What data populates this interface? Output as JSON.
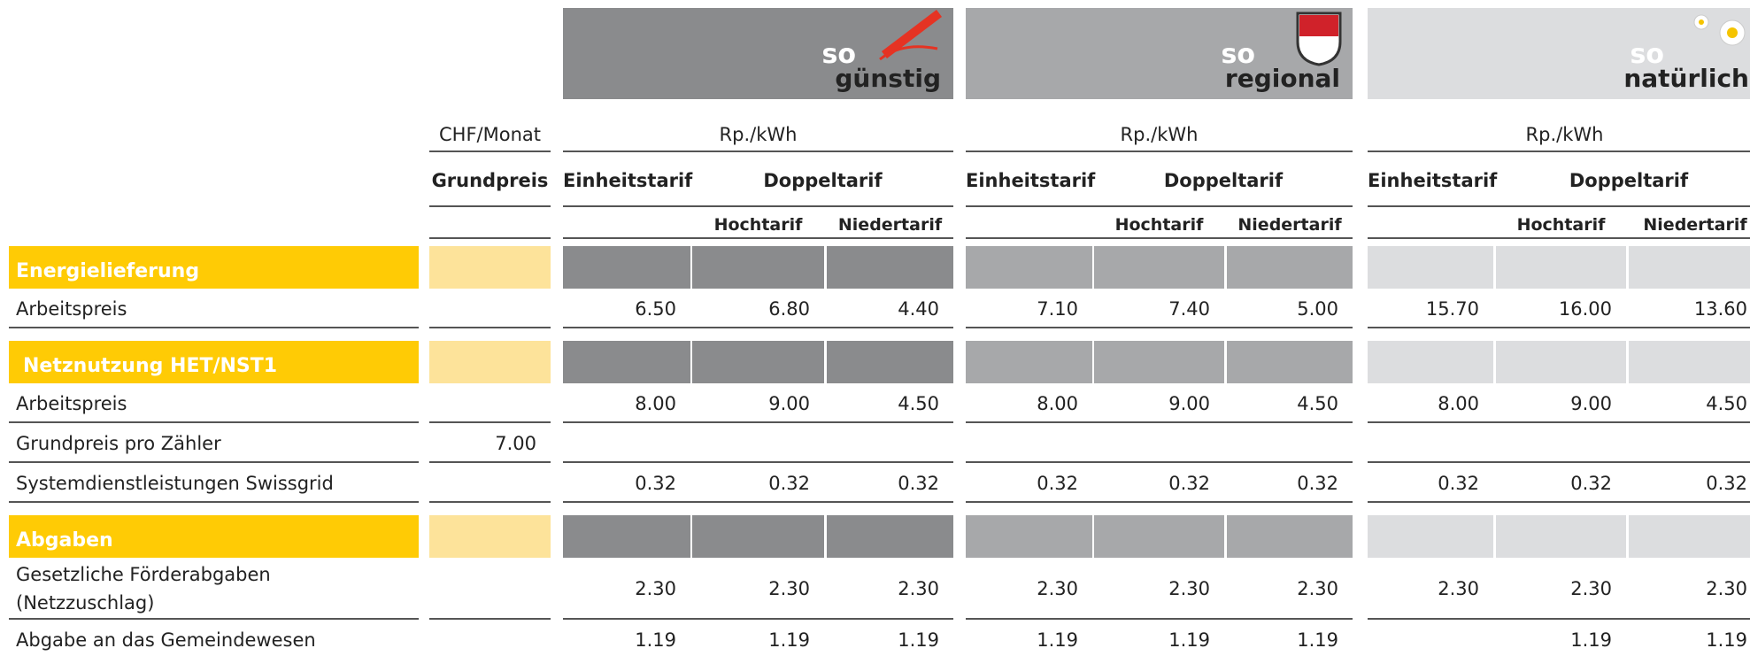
{
  "groups": [
    {
      "brand": "so",
      "name": "günstig"
    },
    {
      "brand": "so",
      "name": "regional"
    },
    {
      "brand": "so",
      "name": "natürlich"
    }
  ],
  "units": {
    "grundpreis": "CHF/Monat",
    "groups": [
      "Rp./kWh",
      "Rp./kWh",
      "Rp./kWh"
    ]
  },
  "columns": {
    "grundpreis": "Grundpreis",
    "groups": [
      {
        "single": "Einheitstarif",
        "double": "Doppeltarif",
        "high": "Hochtarif",
        "low": "Niedertarif"
      },
      {
        "single": "Einheitstarif",
        "double": "Doppeltarif",
        "high": "Hochtarif",
        "low": "Niedertarif"
      },
      {
        "single": "Einheitstarif",
        "double": "Doppeltarif",
        "high": "Hochtarif",
        "low": "Niedertarif"
      }
    ]
  },
  "sections": [
    {
      "title": "Energielieferung",
      "rows": [
        {
          "label": "Arbeitspreis",
          "values": [
            [
              "6.50",
              "6.80",
              "4.40"
            ],
            [
              "7.10",
              "7.40",
              "5.00"
            ],
            [
              "15.70",
              "16.00",
              "13.60"
            ]
          ]
        }
      ]
    },
    {
      "title": "Netznutzung HET/NST1",
      "rows": [
        {
          "label": "Arbeitspreis",
          "values": [
            [
              "8.00",
              "9.00",
              "4.50"
            ],
            [
              "8.00",
              "9.00",
              "4.50"
            ],
            [
              "8.00",
              "9.00",
              "4.50"
            ]
          ]
        },
        {
          "label": "Grundpreis pro Zähler",
          "grundpreis": "7.00"
        },
        {
          "label": "Systemdienstleistungen Swissgrid",
          "values": [
            [
              "0.32",
              "0.32",
              "0.32"
            ],
            [
              "0.32",
              "0.32",
              "0.32"
            ],
            [
              "0.32",
              "0.32",
              "0.32"
            ]
          ]
        }
      ]
    },
    {
      "title": "Abgaben",
      "rows": [
        {
          "label": [
            "Gesetzliche Förderabgaben",
            "(Netzzuschlag)"
          ],
          "values": [
            [
              "2.30",
              "2.30",
              "2.30"
            ],
            [
              "2.30",
              "2.30",
              "2.30"
            ],
            [
              "2.30",
              "2.30",
              "2.30"
            ]
          ]
        },
        {
          "label": "Abgabe an das Gemeindewesen",
          "values": [
            [
              "1.19",
              "1.19",
              "1.19"
            ],
            [
              "1.19",
              "1.19",
              "1.19"
            ],
            [
              null,
              "1.19",
              "1.19"
            ]
          ]
        }
      ]
    }
  ]
}
